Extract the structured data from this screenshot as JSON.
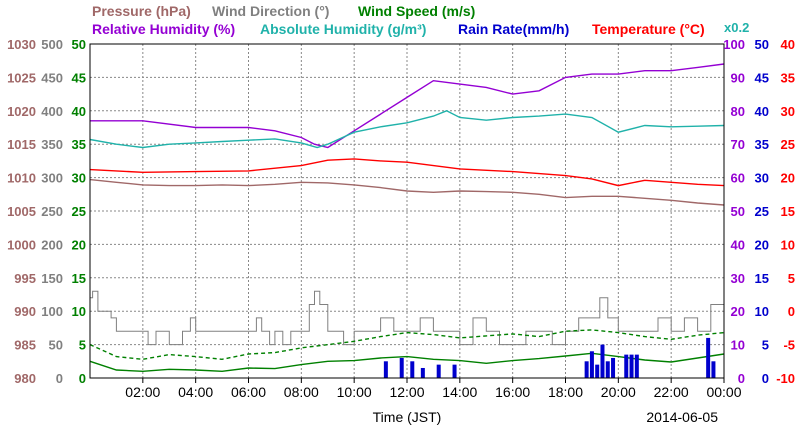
{
  "chart_data": {
    "type": "line",
    "legend_row1": [
      {
        "text": "Pressure (hPa)",
        "color": "#a06868"
      },
      {
        "text": "Wind Direction (°)",
        "color": "#808080"
      },
      {
        "text": "Wind Speed (m/s)",
        "color": "#008000"
      }
    ],
    "legend_row2": [
      {
        "text": "Relative Humidity (%)",
        "color": "#9400d3"
      },
      {
        "text": "Absolute Humidity (g/m³)",
        "color": "#20b2aa"
      },
      {
        "text": "Rain Rate(mm/h)",
        "color": "#0000cd"
      },
      {
        "text": "Temperature (°C)",
        "color": "#ff0000"
      }
    ],
    "rain_scale": {
      "text": "x0.2",
      "color": "#20b2aa"
    },
    "xlabel": "Time (JST)",
    "date": "2014-06-05",
    "x_ticks": [
      "02:00",
      "04:00",
      "06:00",
      "08:00",
      "10:00",
      "12:00",
      "14:00",
      "16:00",
      "18:00",
      "20:00",
      "22:00",
      "00:00"
    ],
    "xlim_hours": [
      0,
      24
    ],
    "axes": {
      "pressure": {
        "color": "#a06868",
        "ticks": [
          "980",
          "985",
          "990",
          "995",
          "1000",
          "1005",
          "1010",
          "1015",
          "1020",
          "1025",
          "1030"
        ],
        "range": [
          980,
          1030
        ]
      },
      "wind_direction": {
        "color": "#808080",
        "ticks": [
          "0",
          "50",
          "100",
          "150",
          "200",
          "250",
          "300",
          "350",
          "400",
          "450",
          "500"
        ],
        "range": [
          0,
          500
        ]
      },
      "wind_speed": {
        "color": "#008000",
        "ticks": [
          "0",
          "5",
          "10",
          "15",
          "20",
          "25",
          "30",
          "35",
          "40",
          "45",
          "50"
        ],
        "range": [
          0,
          50
        ]
      },
      "humidity": {
        "color": "#9400d3",
        "ticks": [
          "0",
          "10",
          "20",
          "30",
          "40",
          "50",
          "60",
          "70",
          "80",
          "90",
          "100"
        ],
        "range": [
          0,
          100
        ]
      },
      "rain_rate": {
        "color": "#0000cd",
        "ticks": [
          "0",
          "5",
          "10",
          "15",
          "20",
          "25",
          "30",
          "35",
          "40",
          "45",
          "50"
        ],
        "range": [
          0,
          50
        ]
      },
      "temperature": {
        "color": "#ff0000",
        "ticks": [
          "-10",
          "-5",
          "0",
          "5",
          "10",
          "15",
          "20",
          "25",
          "30",
          "35",
          "40"
        ],
        "range": [
          -10,
          40
        ]
      }
    },
    "series": [
      {
        "name": "Relative Humidity (%)",
        "color": "#9400d3",
        "axis": "humidity",
        "x": [
          0,
          2,
          4,
          6,
          7,
          8,
          8.5,
          9,
          10,
          11,
          12,
          13,
          14,
          15,
          16,
          17,
          18,
          19,
          20,
          21,
          22,
          23,
          24
        ],
        "y": [
          77,
          77,
          75,
          75,
          74,
          72,
          70,
          69,
          74,
          79,
          84,
          89,
          88,
          87,
          85,
          86,
          90,
          91,
          91,
          92,
          92,
          93,
          94
        ]
      },
      {
        "name": "Absolute Humidity (g/m³)",
        "color": "#20b2aa",
        "axis": "wind_direction",
        "x": [
          0,
          1,
          2,
          3,
          4,
          5,
          6,
          7,
          8,
          8.6,
          9,
          10,
          11,
          12,
          13,
          13.5,
          14,
          15,
          16,
          17,
          18,
          19,
          20,
          21,
          22,
          23,
          24
        ],
        "y": [
          357,
          350,
          345,
          350,
          352,
          354,
          356,
          358,
          352,
          345,
          350,
          368,
          376,
          382,
          392,
          400,
          390,
          386,
          390,
          392,
          395,
          390,
          368,
          378,
          376,
          377,
          378
        ]
      },
      {
        "name": "Temperature (°C)",
        "color": "#ff0000",
        "axis": "temperature",
        "x": [
          0,
          2,
          4,
          6,
          8,
          9,
          10,
          11,
          12,
          14,
          16,
          17,
          18,
          19,
          20,
          21,
          22,
          23,
          24
        ],
        "y": [
          21.2,
          20.8,
          20.9,
          21.0,
          21.8,
          22.6,
          22.8,
          22.5,
          22.3,
          21.3,
          20.9,
          20.6,
          20.3,
          19.8,
          18.8,
          19.6,
          19.3,
          19.0,
          18.8
        ]
      },
      {
        "name": "Pressure (hPa)",
        "color": "#a06868",
        "axis": "pressure",
        "x": [
          0,
          1,
          2,
          3,
          4,
          5,
          6,
          7,
          8,
          9,
          10,
          11,
          12,
          13,
          14,
          15,
          16,
          17,
          18,
          19,
          20,
          21,
          22,
          23,
          24
        ],
        "y": [
          1009.7,
          1009.3,
          1008.9,
          1008.8,
          1008.8,
          1008.9,
          1008.8,
          1009.0,
          1009.3,
          1009.2,
          1008.9,
          1008.5,
          1008.0,
          1007.8,
          1008.0,
          1007.9,
          1007.8,
          1007.5,
          1007.0,
          1007.2,
          1007.2,
          1006.9,
          1006.6,
          1006.2,
          1005.9
        ]
      },
      {
        "name": "Wind Direction (°)",
        "color": "#808080",
        "axis": "wind_direction",
        "step": true,
        "x": [
          0,
          0.1,
          0.3,
          0.6,
          0.8,
          1,
          2,
          2.2,
          2.5,
          2.8,
          3,
          3.5,
          3.8,
          4,
          4.5,
          5,
          5.5,
          6,
          6.3,
          6.5,
          6.8,
          7,
          7.3,
          7.6,
          8,
          8.3,
          8.5,
          8.7,
          9,
          9.3,
          9.6,
          10,
          10.5,
          11,
          11.5,
          12,
          12.5,
          13,
          13.5,
          14,
          14.5,
          15,
          15.5,
          16,
          16.5,
          17,
          17.5,
          18,
          18.5,
          19,
          19.3,
          19.6,
          20,
          20.5,
          21,
          21.5,
          22,
          22.5,
          23,
          23.5,
          24
        ],
        "y": [
          120,
          130,
          100,
          100,
          90,
          70,
          70,
          50,
          70,
          70,
          50,
          70,
          90,
          70,
          70,
          70,
          70,
          70,
          90,
          70,
          50,
          70,
          50,
          70,
          70,
          110,
          130,
          110,
          70,
          70,
          50,
          70,
          70,
          90,
          70,
          70,
          90,
          70,
          70,
          50,
          90,
          70,
          50,
          50,
          70,
          70,
          50,
          70,
          90,
          90,
          120,
          90,
          70,
          70,
          70,
          90,
          70,
          90,
          70,
          110,
          70
        ]
      },
      {
        "name": "Wind Speed (m/s)",
        "color": "#008000",
        "axis": "wind_speed",
        "x": [
          0,
          1,
          2,
          3,
          4,
          5,
          6,
          7,
          8,
          9,
          10,
          11,
          12,
          13,
          14,
          15,
          16,
          17,
          18,
          19,
          20,
          21,
          22,
          23,
          24
        ],
        "y": [
          2.5,
          1.2,
          1.0,
          1.3,
          1.2,
          1.0,
          1.5,
          1.4,
          2.0,
          2.5,
          2.6,
          3.0,
          3.2,
          2.8,
          2.6,
          2.2,
          2.6,
          2.9,
          3.3,
          3.7,
          3.2,
          2.7,
          2.4,
          3.0,
          3.6
        ]
      },
      {
        "name": "Wind Speed (m/s)",
        "color": "#008000",
        "axis": "wind_speed",
        "dashed": true,
        "x": [
          0,
          1,
          2,
          3,
          4,
          5,
          6,
          7,
          8,
          9,
          10,
          11,
          12,
          13,
          14,
          15,
          16,
          17,
          18,
          19,
          20,
          21,
          22,
          23,
          24
        ],
        "y": [
          5.0,
          3.2,
          2.8,
          3.5,
          3.2,
          2.8,
          3.6,
          3.8,
          4.5,
          5.0,
          5.5,
          6.2,
          6.8,
          6.5,
          6.0,
          6.3,
          6.6,
          6.2,
          7.0,
          7.2,
          6.8,
          6.2,
          5.8,
          6.4,
          6.8
        ]
      },
      {
        "name": "Rain Rate(mm/h)",
        "color": "#0000cd",
        "axis": "rain_rate",
        "bars": true,
        "x": [
          11.2,
          11.8,
          12.2,
          12.6,
          13.2,
          13.8,
          18.8,
          19.0,
          19.2,
          19.4,
          19.6,
          19.8,
          20.3,
          20.5,
          20.7,
          23.4,
          23.6
        ],
        "y": [
          2.5,
          3.0,
          2.5,
          1.5,
          2.0,
          2.0,
          2.5,
          4.0,
          2.0,
          5.0,
          2.5,
          3.0,
          3.5,
          3.5,
          3.5,
          6.0,
          2.5
        ]
      }
    ]
  }
}
